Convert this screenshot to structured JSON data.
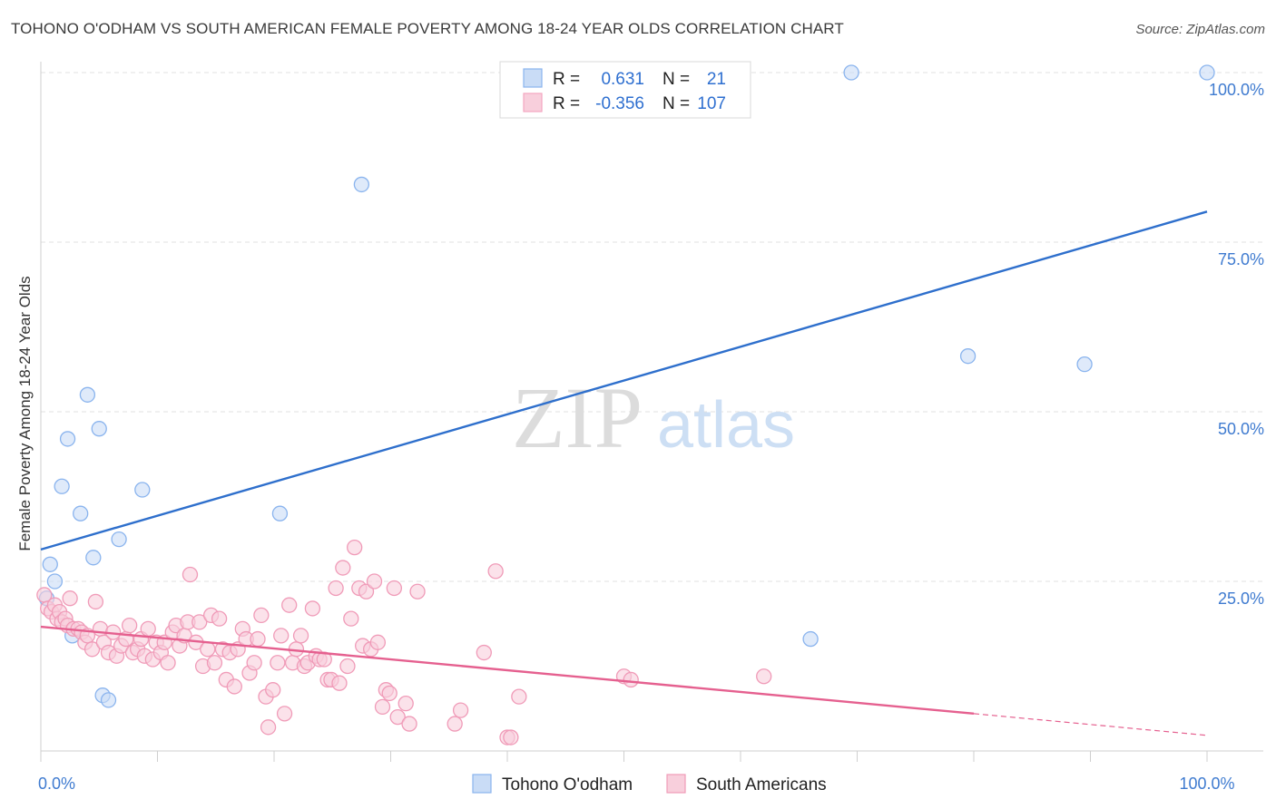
{
  "header": {
    "title": "TOHONO O'ODHAM VS SOUTH AMERICAN FEMALE POVERTY AMONG 18-24 YEAR OLDS CORRELATION CHART",
    "source": "Source: ZipAtlas.com"
  },
  "watermark": {
    "zip": "ZIP",
    "atlas": "atlas"
  },
  "chart_data": {
    "type": "scatter",
    "ylabel": "Female Poverty Among 18-24 Year Olds",
    "xlim": [
      0,
      100
    ],
    "ylim": [
      0,
      100
    ],
    "x_tick_labels": [
      {
        "value": 0,
        "label": "0.0%"
      },
      {
        "value": 100,
        "label": "100.0%"
      }
    ],
    "y_tick_labels": [
      {
        "value": 25,
        "label": "25.0%"
      },
      {
        "value": 50,
        "label": "50.0%"
      },
      {
        "value": 75,
        "label": "75.0%"
      },
      {
        "value": 100,
        "label": "100.0%"
      }
    ],
    "grid": true,
    "legend_position": "top-center",
    "legend": [
      {
        "r_label": "R =",
        "r_value": "0.631",
        "n_label": "N =",
        "n_value": "21",
        "color": "#8ab4ee"
      },
      {
        "r_label": "R =",
        "r_value": "-0.356",
        "n_label": "N =",
        "n_value": "107",
        "color": "#f4a6c0"
      }
    ],
    "series": [
      {
        "name": "Tohono O'odham",
        "color": "#8ab4ee",
        "fill": "#c9dcf6",
        "trend_color": "#2e6fcc",
        "trend": [
          [
            0,
            29.7
          ],
          [
            100,
            79.5
          ]
        ],
        "points": [
          [
            0.5,
            22.5
          ],
          [
            0.8,
            27.5
          ],
          [
            1.2,
            25
          ],
          [
            1.8,
            39
          ],
          [
            2.3,
            46
          ],
          [
            2.7,
            17
          ],
          [
            3.4,
            35
          ],
          [
            4,
            52.5
          ],
          [
            4.5,
            28.5
          ],
          [
            5,
            47.5
          ],
          [
            5.3,
            8.2
          ],
          [
            5.8,
            7.5
          ],
          [
            6.7,
            31.2
          ],
          [
            8.7,
            38.5
          ],
          [
            20.5,
            35
          ],
          [
            27.5,
            83.5
          ],
          [
            66,
            16.5
          ],
          [
            69.5,
            100
          ],
          [
            79.5,
            58.2
          ],
          [
            89.5,
            57
          ],
          [
            100,
            100
          ]
        ]
      },
      {
        "name": "South Americans",
        "color": "#f09bb8",
        "fill": "#f8cfdc",
        "trend_color": "#e5608f",
        "trend": [
          [
            0,
            18.3
          ],
          [
            80,
            5.5
          ]
        ],
        "trend_dashed": [
          [
            80,
            5.5
          ],
          [
            100,
            2.3
          ]
        ],
        "points": [
          [
            0.3,
            23
          ],
          [
            0.6,
            21
          ],
          [
            0.9,
            20.5
          ],
          [
            1.2,
            21.5
          ],
          [
            1.4,
            19.5
          ],
          [
            1.6,
            20.5
          ],
          [
            1.8,
            19
          ],
          [
            2.1,
            19.5
          ],
          [
            2.3,
            18.5
          ],
          [
            2.5,
            22.5
          ],
          [
            2.8,
            18
          ],
          [
            3.2,
            18
          ],
          [
            3.5,
            17.5
          ],
          [
            3.8,
            16
          ],
          [
            4,
            17
          ],
          [
            4.4,
            15
          ],
          [
            4.7,
            22
          ],
          [
            5.1,
            18
          ],
          [
            5.4,
            16
          ],
          [
            5.8,
            14.5
          ],
          [
            6.2,
            17.5
          ],
          [
            6.5,
            14
          ],
          [
            6.9,
            15.5
          ],
          [
            7.3,
            16.5
          ],
          [
            7.6,
            18.5
          ],
          [
            7.9,
            14.5
          ],
          [
            8.3,
            15
          ],
          [
            8.6,
            16.5
          ],
          [
            8.9,
            14
          ],
          [
            9.2,
            18
          ],
          [
            9.6,
            13.5
          ],
          [
            9.9,
            16
          ],
          [
            10.3,
            14.5
          ],
          [
            10.6,
            16
          ],
          [
            10.9,
            13
          ],
          [
            11.3,
            17.5
          ],
          [
            11.6,
            18.5
          ],
          [
            11.9,
            15.5
          ],
          [
            12.3,
            17
          ],
          [
            12.6,
            19
          ],
          [
            12.8,
            26
          ],
          [
            13.3,
            16
          ],
          [
            13.6,
            19
          ],
          [
            13.9,
            12.5
          ],
          [
            14.3,
            15
          ],
          [
            14.6,
            20
          ],
          [
            14.9,
            13
          ],
          [
            15.3,
            19.5
          ],
          [
            15.6,
            15
          ],
          [
            15.9,
            10.5
          ],
          [
            16.2,
            14.5
          ],
          [
            16.6,
            9.5
          ],
          [
            16.9,
            15
          ],
          [
            17.3,
            18
          ],
          [
            17.6,
            16.5
          ],
          [
            17.9,
            11.5
          ],
          [
            18.3,
            13
          ],
          [
            18.6,
            16.5
          ],
          [
            18.9,
            20
          ],
          [
            19.3,
            8
          ],
          [
            19.5,
            3.5
          ],
          [
            19.9,
            9
          ],
          [
            20.3,
            13
          ],
          [
            20.6,
            17
          ],
          [
            20.9,
            5.5
          ],
          [
            21.3,
            21.5
          ],
          [
            21.6,
            13
          ],
          [
            21.9,
            15
          ],
          [
            22.3,
            17
          ],
          [
            22.6,
            12.5
          ],
          [
            22.9,
            13
          ],
          [
            23.3,
            21
          ],
          [
            23.6,
            14
          ],
          [
            23.9,
            13.5
          ],
          [
            24.3,
            13.5
          ],
          [
            24.6,
            10.5
          ],
          [
            24.9,
            10.5
          ],
          [
            25.3,
            24
          ],
          [
            25.6,
            10
          ],
          [
            25.9,
            27
          ],
          [
            26.3,
            12.5
          ],
          [
            26.6,
            19.5
          ],
          [
            26.9,
            30
          ],
          [
            27.3,
            24
          ],
          [
            27.6,
            15.5
          ],
          [
            27.9,
            23.5
          ],
          [
            28.3,
            15
          ],
          [
            28.6,
            25
          ],
          [
            28.9,
            16
          ],
          [
            29.3,
            6.5
          ],
          [
            29.6,
            9
          ],
          [
            29.9,
            8.5
          ],
          [
            30.3,
            24
          ],
          [
            30.6,
            5
          ],
          [
            31.3,
            7
          ],
          [
            31.6,
            4
          ],
          [
            32.3,
            23.5
          ],
          [
            35.5,
            4
          ],
          [
            36,
            6
          ],
          [
            38,
            14.5
          ],
          [
            39,
            26.5
          ],
          [
            40,
            2
          ],
          [
            40.3,
            2
          ],
          [
            41,
            8
          ],
          [
            50,
            11
          ],
          [
            50.6,
            10.5
          ],
          [
            62,
            11
          ]
        ]
      }
    ]
  },
  "bottom_legend": {
    "items": [
      {
        "label": "Tohono O'odham",
        "color": "#c9dcf6",
        "border": "#8ab4ee"
      },
      {
        "label": "South Americans",
        "color": "#f8cfdc",
        "border": "#f09bb8"
      }
    ]
  }
}
